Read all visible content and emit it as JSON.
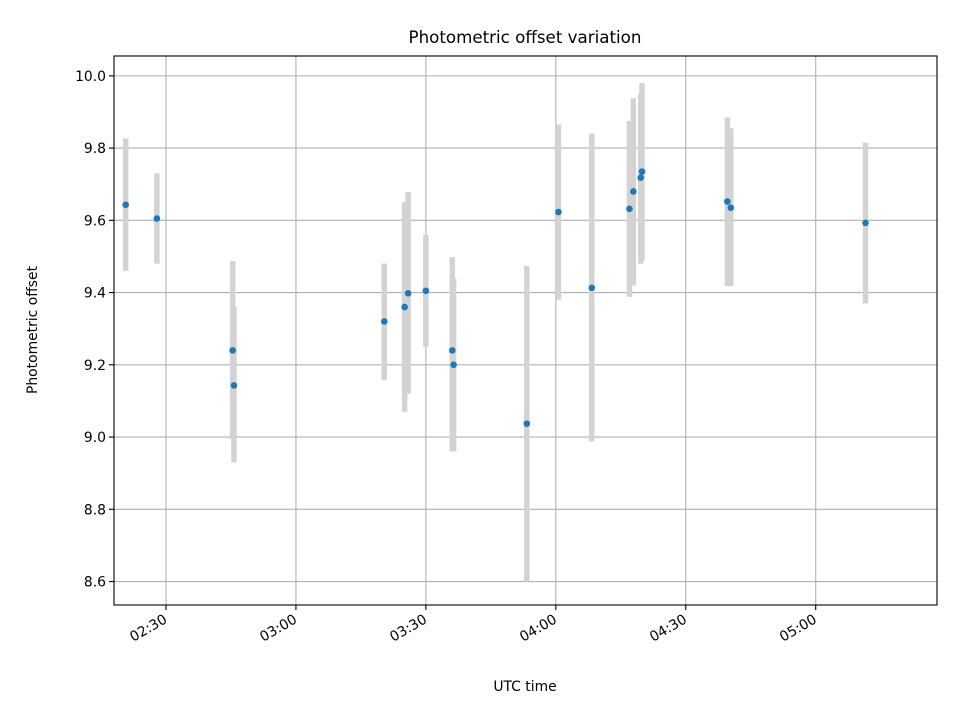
{
  "chart_data": {
    "type": "scatter",
    "title": "Photometric offset variation",
    "xlabel": "UTC time",
    "ylabel": "Photometric offset",
    "x_unit": "UTC time (HH:MM)",
    "xlim": [
      "02:18",
      "05:28"
    ],
    "ylim": [
      8.535,
      10.055
    ],
    "x_ticks": [
      "02:30",
      "03:00",
      "03:30",
      "04:00",
      "04:30",
      "05:00"
    ],
    "y_ticks": [
      "8.6",
      "8.8",
      "9.0",
      "9.2",
      "9.4",
      "9.6",
      "9.8",
      "10.0"
    ],
    "grid": true,
    "legend": "none",
    "colors": {
      "points": "#1f77b4",
      "error_bars": "#d3d3d3"
    },
    "points": [
      {
        "time": "02:20.7",
        "y": 9.643,
        "ylow": 9.46,
        "yhigh": 9.827
      },
      {
        "time": "02:27.9",
        "y": 9.605,
        "ylow": 9.48,
        "yhigh": 9.73
      },
      {
        "time": "02:45.4",
        "y": 9.24,
        "ylow": 8.995,
        "yhigh": 9.487
      },
      {
        "time": "02:45.7",
        "y": 9.143,
        "ylow": 8.93,
        "yhigh": 9.36
      },
      {
        "time": "03:20.4",
        "y": 9.32,
        "ylow": 9.158,
        "yhigh": 9.48
      },
      {
        "time": "03:25.1",
        "y": 9.36,
        "ylow": 9.07,
        "yhigh": 9.65
      },
      {
        "time": "03:25.9",
        "y": 9.398,
        "ylow": 9.12,
        "yhigh": 9.678
      },
      {
        "time": "03:30.0",
        "y": 9.405,
        "ylow": 9.25,
        "yhigh": 9.56
      },
      {
        "time": "03:36.1",
        "y": 9.24,
        "ylow": 8.96,
        "yhigh": 9.498
      },
      {
        "time": "03:36.4",
        "y": 9.2,
        "ylow": 8.96,
        "yhigh": 9.44
      },
      {
        "time": "03:53.3",
        "y": 9.037,
        "ylow": 8.6,
        "yhigh": 9.474
      },
      {
        "time": "04:00.6",
        "y": 9.623,
        "ylow": 9.38,
        "yhigh": 9.865
      },
      {
        "time": "04:08.3",
        "y": 9.413,
        "ylow": 8.988,
        "yhigh": 9.84
      },
      {
        "time": "04:17.0",
        "y": 9.632,
        "ylow": 9.388,
        "yhigh": 9.875
      },
      {
        "time": "04:17.9",
        "y": 9.68,
        "ylow": 9.42,
        "yhigh": 9.938
      },
      {
        "time": "04:19.6",
        "y": 9.718,
        "ylow": 9.48,
        "yhigh": 9.95
      },
      {
        "time": "04:19.9",
        "y": 9.735,
        "ylow": 9.49,
        "yhigh": 9.98
      },
      {
        "time": "04:39.6",
        "y": 9.652,
        "ylow": 9.418,
        "yhigh": 9.885
      },
      {
        "time": "04:40.4",
        "y": 9.635,
        "ylow": 9.418,
        "yhigh": 9.855
      },
      {
        "time": "05:11.5",
        "y": 9.593,
        "ylow": 9.37,
        "yhigh": 9.815
      }
    ]
  }
}
